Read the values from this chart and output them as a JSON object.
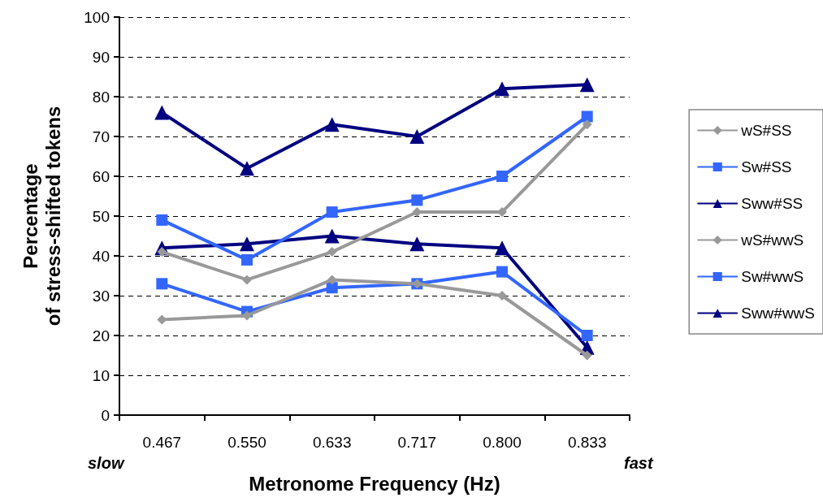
{
  "chart_data": {
    "type": "line",
    "xlabel": "Metronome Frequency (Hz)",
    "ylabel": "Percentage of stress-shifted tokens",
    "categories": [
      "0.467",
      "0.550",
      "0.633",
      "0.717",
      "0.800",
      "0.833"
    ],
    "ylim": [
      0,
      100
    ],
    "yticks": [
      0,
      10,
      20,
      30,
      40,
      50,
      60,
      70,
      80,
      90,
      100
    ],
    "grid": "y",
    "legend": "right",
    "line_style": "solid",
    "annotations": [
      "slow",
      "fast"
    ],
    "series": [
      {
        "name": "wS#SS",
        "color": "#999999",
        "marker": "diamond",
        "values": [
          41,
          34,
          41,
          51,
          51,
          73
        ]
      },
      {
        "name": "Sw#SS",
        "color": "#3366ff",
        "marker": "square",
        "values": [
          49,
          39,
          51,
          54,
          60,
          75
        ]
      },
      {
        "name": "Sww#SS",
        "color": "#000080",
        "marker": "triangle",
        "values": [
          76,
          62,
          73,
          70,
          82,
          83
        ]
      },
      {
        "name": "wS#wwS",
        "color": "#999999",
        "marker": "diamond",
        "values": [
          24,
          25,
          34,
          33,
          30,
          15
        ]
      },
      {
        "name": "Sw#wwS",
        "color": "#3366ff",
        "marker": "square",
        "values": [
          33,
          26,
          32,
          33,
          36,
          20
        ]
      },
      {
        "name": "Sww#wwS",
        "color": "#000080",
        "marker": "triangle",
        "values": [
          42,
          43,
          45,
          43,
          42,
          17
        ]
      }
    ]
  }
}
